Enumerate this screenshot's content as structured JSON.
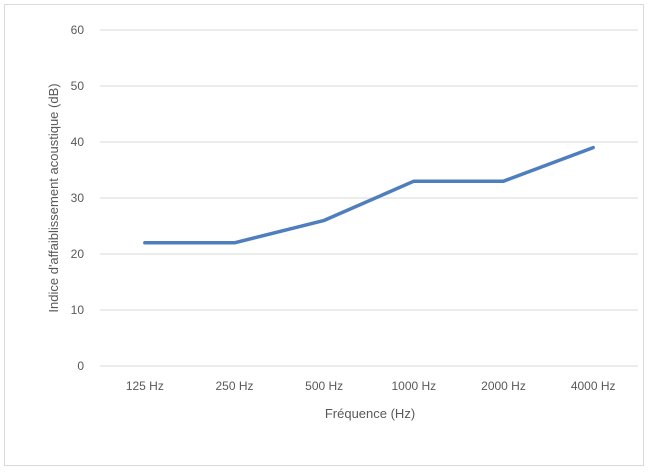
{
  "chart_data": {
    "type": "line",
    "title": "",
    "xlabel": "Fréquence (Hz)",
    "ylabel": "Indice d'affaiblissement acoustique (dB)",
    "categories": [
      "125 Hz",
      "250 Hz",
      "500 Hz",
      "1000 Hz",
      "2000 Hz",
      "4000 Hz"
    ],
    "series": [
      {
        "values": [
          22,
          22,
          26,
          33,
          33,
          39
        ],
        "color": "#4f7ebf"
      }
    ],
    "ylim": [
      0,
      60
    ],
    "yticks": [
      0,
      10,
      20,
      30,
      40,
      50,
      60
    ],
    "grid": "horizontal",
    "legend": "none"
  }
}
